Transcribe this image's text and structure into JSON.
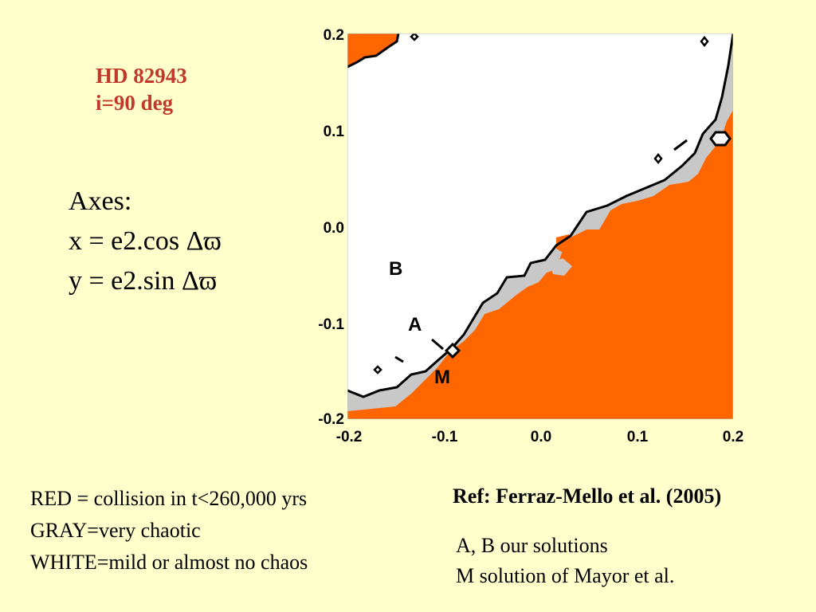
{
  "header": {
    "title_line1": "HD  82943",
    "title_line2": "i=90 deg"
  },
  "axes_note": {
    "heading": "Axes:",
    "x_def": "x = e2.cos Δϖ",
    "y_def": "y = e2.sin Δϖ"
  },
  "plot": {
    "y_ticks": [
      "0.2",
      "0.1",
      "0.0",
      "-0.1",
      "-0.2"
    ],
    "x_ticks": [
      "-0.2",
      "-0.1",
      "0.0",
      "0.1",
      "0.2"
    ],
    "points": {
      "B": "B",
      "A": "A",
      "M": "M"
    },
    "colors": {
      "collision": "#ff6600",
      "chaotic": "#c8c8c8",
      "mild": "#ffffff",
      "border": "#000000"
    }
  },
  "legend": {
    "red": "RED = collision in t<260,000 yrs",
    "gray": "GRAY=very chaotic",
    "white": "WHITE=mild or almost no chaos"
  },
  "reference": "Ref: Ferraz-Mello et al. (2005)",
  "solutions": {
    "ab": "A, B our solutions",
    "m": "M solution of Mayor et al."
  }
}
